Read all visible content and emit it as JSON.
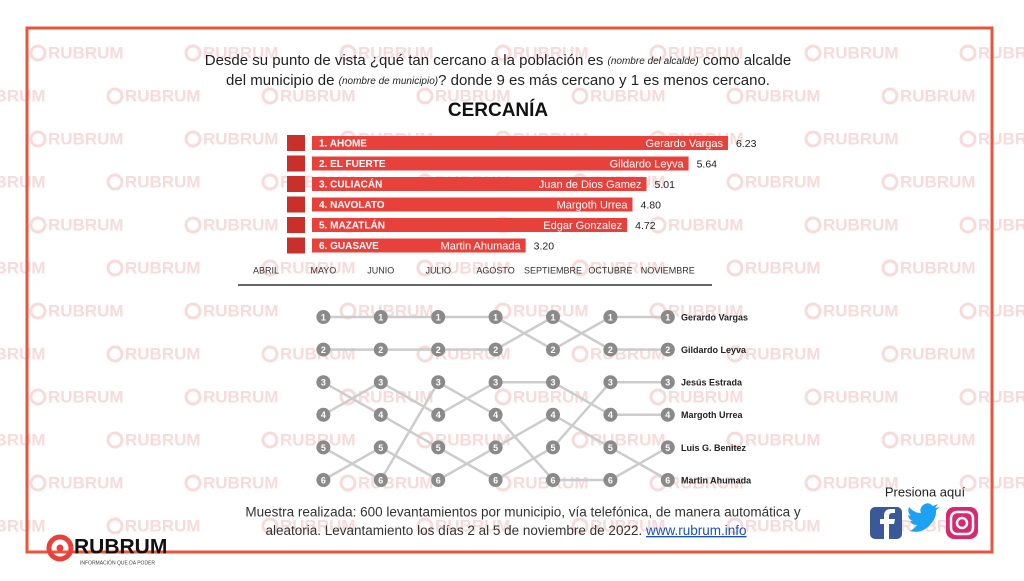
{
  "watermark": "RUBRUM",
  "question": {
    "line1_a": "Desde su punto de vista ¿qué tan cercano a la población es",
    "line1_b": "(nombre del alcalde)",
    "line1_c": "como alcalde",
    "line2_a": "del municipio de",
    "line2_b": "(nombre de municipio)",
    "line2_c": "? donde 9 es más cercano y 1 es menos cercano."
  },
  "chart_data": [
    {
      "type": "hbar",
      "title": "CERCANÍA",
      "categories": [
        "1. AHOME",
        "2. EL FUERTE",
        "3. CULIACÁN",
        "4. NAVOLATO",
        "5. MAZATLÁN",
        "6. GUASAVE"
      ],
      "bar_labels": [
        "Gerardo Vargas",
        "Gildardo Leyva",
        "Juan de Dios Gamez",
        "Margoth Urrea",
        "Edgar Gonzalez",
        "Martin Ahumada"
      ],
      "values": [
        6.23,
        5.64,
        5.01,
        4.8,
        4.72,
        3.2
      ],
      "value_labels": [
        "6.23",
        "5.64",
        "5.01",
        "4.80",
        "4.72",
        "3.20"
      ],
      "xlim": [
        0,
        6.5
      ],
      "color": "#e8413c"
    },
    {
      "type": "bump",
      "categories": [
        "ABRIL",
        "MAYO",
        "JUNIO",
        "JULIO",
        "AGOSTO",
        "SEPTIEMBRE",
        "OCTUBRE",
        "NOVIEMBRE"
      ],
      "ylim": [
        1,
        6
      ],
      "y_inverted": true,
      "line_color": "#cccccc",
      "marker_color": "#8a8a8a",
      "series": [
        {
          "name": "Gerardo Vargas",
          "values": [
            null,
            1,
            1,
            1,
            1,
            2,
            1,
            1
          ]
        },
        {
          "name": "Gildardo Leyva",
          "values": [
            null,
            2,
            2,
            2,
            2,
            1,
            2,
            2
          ]
        },
        {
          "name": "Jesús Estrada",
          "values": [
            null,
            3,
            4,
            5,
            6,
            5,
            3,
            3
          ]
        },
        {
          "name": "Margoth Urrea",
          "values": [
            null,
            4,
            3,
            4,
            3,
            3,
            4,
            4
          ]
        },
        {
          "name": "Luis G. Benitez",
          "values": [
            null,
            5,
            6,
            3,
            4,
            6,
            6,
            5
          ]
        },
        {
          "name": "Martin Ahumada",
          "values": [
            null,
            6,
            5,
            6,
            5,
            4,
            5,
            6
          ]
        }
      ]
    }
  ],
  "footer": {
    "line1": "Muestra realizada: 600 levantamientos por municipio, vía telefónica, de manera automática y",
    "line2": "aleatoria. Levantamiento los días  2 al 5 de noviembre de 2022.",
    "link": "www.rubrum.info"
  },
  "social": "Presiona aquí",
  "brand": "RUBRUM",
  "tagline": "INFORMACIÓN QUE DA PODER"
}
